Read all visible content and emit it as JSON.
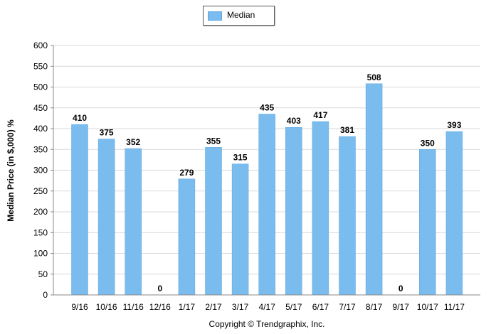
{
  "legend": {
    "label": "Median",
    "placement": "top-center"
  },
  "footer": {
    "copyright": "Copyright © Trendgraphix, Inc."
  },
  "colors": {
    "bar": "#7bbcee",
    "bar_edge": "#5aa6e0",
    "grid": "#d9d9d9",
    "axis": "#888888",
    "text": "#000000"
  },
  "chart_data": {
    "type": "bar",
    "title": "",
    "xlabel": "",
    "ylabel": "Median Price (in $,000) %",
    "ylim": [
      0,
      600
    ],
    "yticks": [
      0,
      50,
      100,
      150,
      200,
      250,
      300,
      350,
      400,
      450,
      500,
      550,
      600
    ],
    "grid": true,
    "categories": [
      "9/16",
      "10/16",
      "11/16",
      "12/16",
      "1/17",
      "2/17",
      "3/17",
      "4/17",
      "5/17",
      "6/17",
      "7/17",
      "8/17",
      "9/17",
      "10/17",
      "11/17"
    ],
    "series": [
      {
        "name": "Median",
        "values": [
          410,
          375,
          352,
          0,
          279,
          355,
          315,
          435,
          403,
          417,
          381,
          508,
          0,
          350,
          393
        ],
        "data_labels": [
          "410",
          "375",
          "352",
          "0",
          "279",
          "355",
          "315",
          "435",
          "403",
          "417",
          "381",
          "508",
          "0",
          "350",
          "393"
        ]
      }
    ]
  }
}
